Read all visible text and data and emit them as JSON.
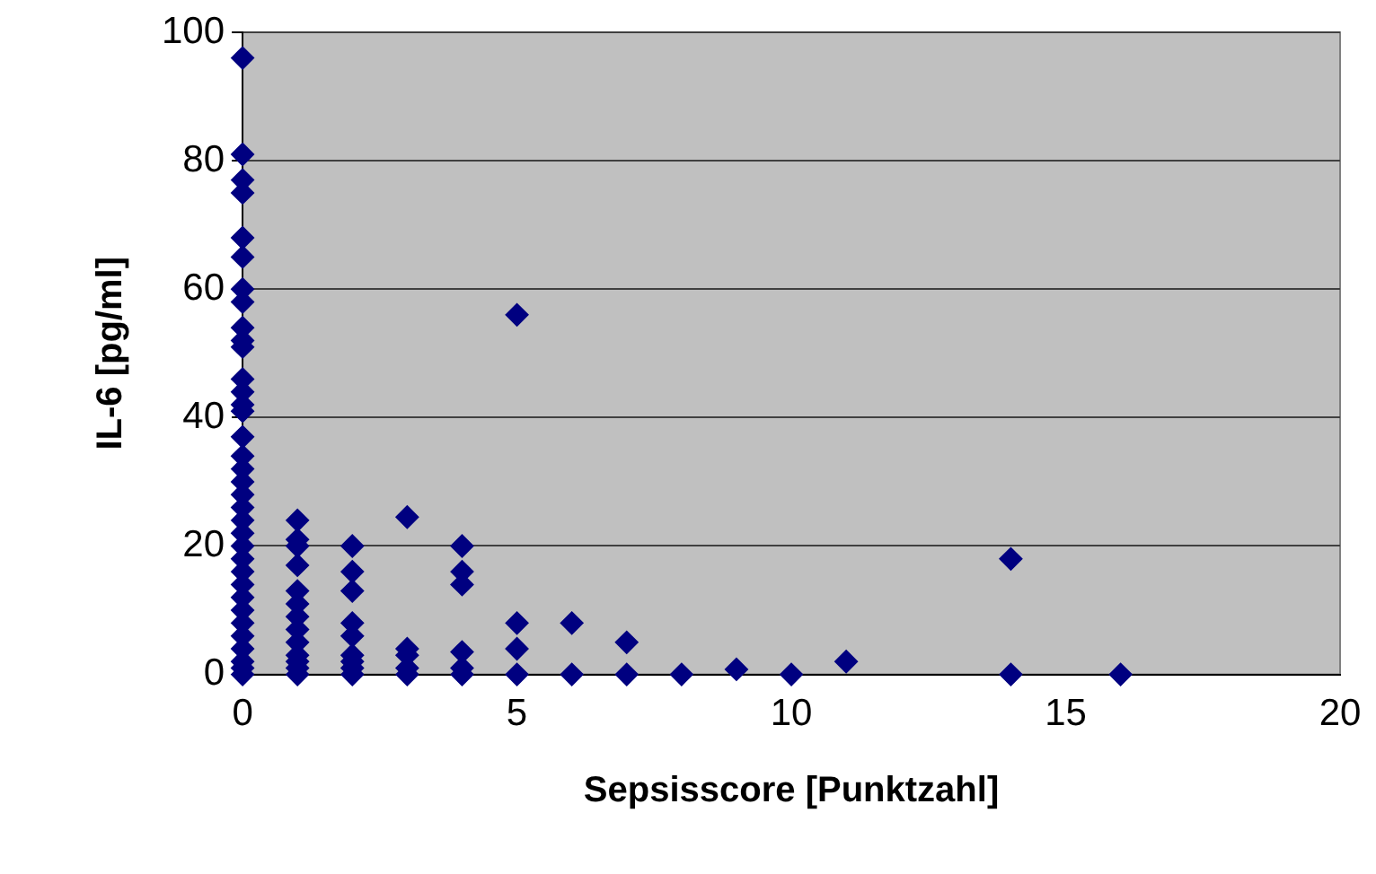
{
  "chart_data": {
    "type": "scatter",
    "xlabel": "Sepsisscore [Punktzahl]",
    "ylabel": "IL-6 [pg/ml]",
    "xlim": [
      0,
      20
    ],
    "xticks": [
      0,
      5,
      10,
      15,
      20
    ],
    "ylim": [
      0,
      100
    ],
    "yticks": [
      0,
      20,
      40,
      60,
      80,
      100
    ],
    "grid": "y",
    "marker": "diamond",
    "legend": false,
    "series": [
      {
        "color": "#000080",
        "x": [
          0,
          0,
          0,
          0,
          0,
          0,
          0,
          0,
          0,
          0,
          0,
          0,
          0,
          0,
          0,
          0,
          0,
          0,
          0,
          0,
          0,
          0,
          0,
          0,
          0,
          0,
          0,
          0,
          0,
          0,
          0,
          0,
          0,
          0,
          0,
          1,
          1,
          1,
          1,
          1,
          1,
          1,
          1,
          1,
          1,
          1,
          1,
          1,
          2,
          2,
          2,
          2,
          2,
          2,
          2,
          2,
          2,
          3,
          3,
          3,
          3,
          3,
          4,
          4,
          4,
          4,
          4,
          4,
          5,
          5,
          5,
          5,
          6,
          6,
          7,
          7,
          8,
          9,
          10,
          11,
          14,
          14,
          16
        ],
        "values": [
          96,
          81,
          77,
          75,
          68,
          65,
          60,
          58,
          54,
          52,
          51,
          46,
          44,
          42,
          41,
          37,
          34,
          32,
          30,
          28,
          26,
          24,
          22,
          20,
          18,
          16,
          14,
          12,
          10,
          8,
          6,
          4,
          2,
          1,
          0,
          24,
          21,
          20,
          17,
          13,
          11,
          9,
          7,
          5,
          3,
          2,
          1,
          0,
          20,
          16,
          13,
          8,
          6,
          3,
          2,
          1,
          0,
          24.5,
          4,
          3,
          1,
          0,
          20,
          16,
          14,
          3.5,
          1,
          0,
          56,
          8,
          4,
          0,
          8,
          0,
          5,
          0,
          0,
          0.8,
          0,
          2,
          18,
          0,
          0
        ]
      }
    ]
  }
}
